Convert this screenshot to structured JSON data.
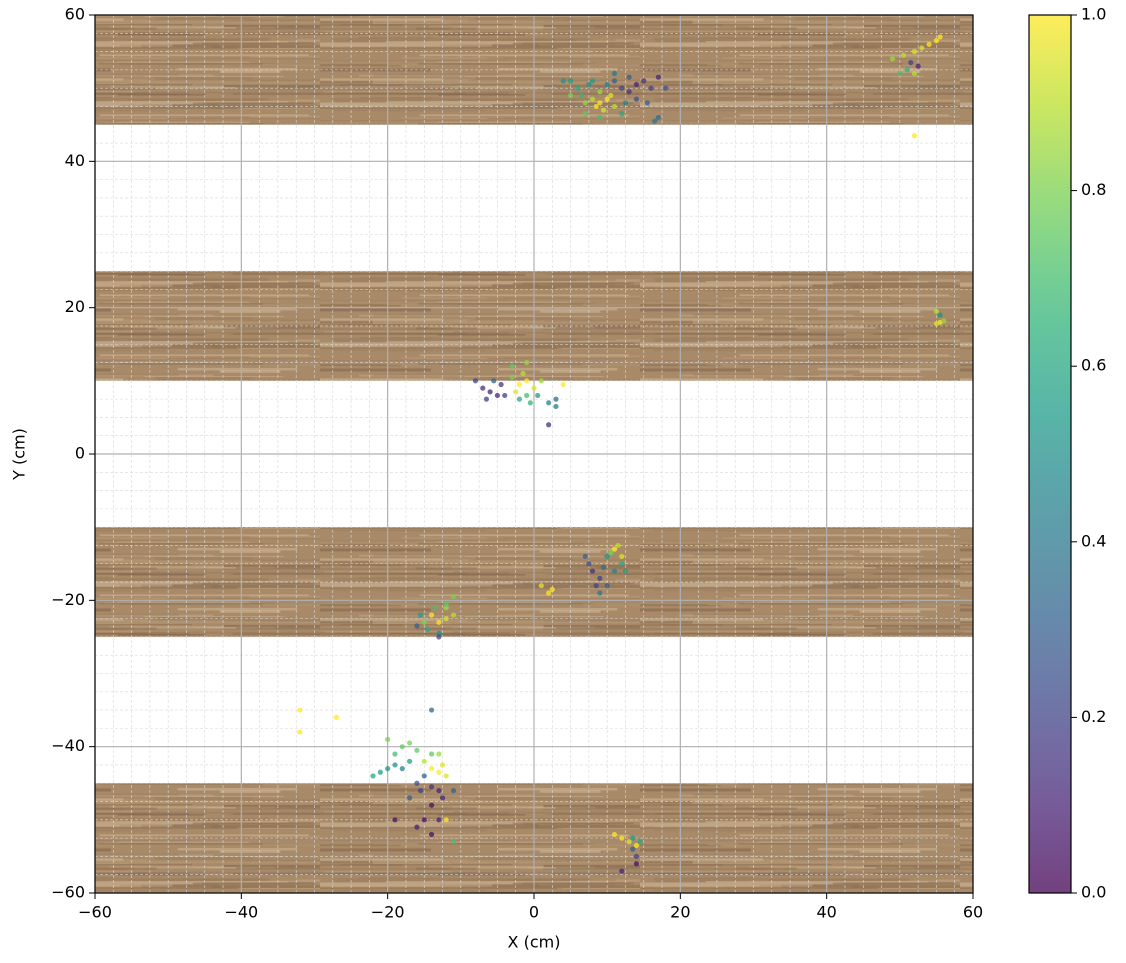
{
  "chart_data": {
    "type": "scatter",
    "xlabel": "X (cm)",
    "ylabel": "Y (cm)",
    "xlim": [
      -60,
      60
    ],
    "ylim": [
      -60,
      60
    ],
    "xticks": [
      {
        "value": -60,
        "label": "−60"
      },
      {
        "value": -40,
        "label": "−40"
      },
      {
        "value": -20,
        "label": "−20"
      },
      0,
      20,
      40,
      60
    ],
    "yticks": [
      {
        "value": -60,
        "label": "−60"
      },
      {
        "value": -40,
        "label": "−40"
      },
      {
        "value": -20,
        "label": "−20"
      },
      0,
      20,
      40,
      60
    ],
    "grid": true,
    "minor_grid": true,
    "colormap": "viridis",
    "bands": [
      [
        45,
        60
      ],
      [
        10,
        25
      ],
      [
        -25,
        -10
      ],
      [
        -60,
        -45
      ]
    ],
    "x": [
      9,
      10,
      8.5,
      9.5,
      10.5,
      8,
      11,
      9,
      7,
      6,
      5,
      7.5,
      6.5,
      8,
      4,
      10,
      11,
      12,
      13,
      14,
      15,
      16,
      17,
      14,
      13,
      15.5,
      17,
      12,
      9,
      7,
      11,
      18,
      16.5,
      5,
      12.5,
      52,
      53,
      54,
      55,
      55.5,
      49,
      50,
      51,
      52,
      52.5,
      51.5,
      50.5,
      52,
      55.5,
      55,
      56,
      55.5,
      55,
      -6,
      -7,
      -5,
      -4.5,
      -6.5,
      -5.5,
      -4,
      -2,
      -1,
      -2.5,
      -1.5,
      0,
      1,
      -3,
      -1,
      -0.5,
      -2,
      -3,
      0.5,
      2,
      3,
      3,
      2,
      -1,
      4,
      -8,
      8,
      9,
      7.5,
      8.5,
      9.5,
      10,
      11,
      11.5,
      12,
      10.5,
      12,
      11,
      10,
      9,
      7,
      12.5,
      2,
      2.5,
      1,
      -14,
      -13,
      -12,
      -15,
      -13.5,
      -12,
      -14.5,
      -13,
      -11,
      -15.5,
      -12,
      -16,
      -13,
      -11,
      -18,
      -19,
      -17,
      -16,
      -20,
      -20,
      -21,
      -19,
      -18,
      -22,
      -17,
      -15,
      -14,
      -13,
      -12.5,
      -13,
      -14,
      -12,
      -15,
      -14,
      -13,
      -15.5,
      -16,
      -12.5,
      -14,
      -13,
      -15,
      -16,
      -14,
      -17,
      -19,
      -11,
      -14,
      -11,
      -12,
      11,
      12,
      13,
      14,
      14.5,
      13.5,
      14,
      13.5,
      12,
      14,
      -32,
      -32,
      -27
    ],
    "y": [
      48,
      48.5,
      47.5,
      47,
      49,
      48.5,
      47.5,
      49.5,
      48,
      50,
      51,
      50.5,
      49,
      51,
      51,
      50.5,
      51,
      50,
      49.5,
      50.5,
      51,
      50,
      51.5,
      48.5,
      51.5,
      48,
      46,
      46.5,
      46,
      46.5,
      52,
      50,
      45.5,
      49,
      48,
      55,
      55.5,
      56,
      56.5,
      57,
      54,
      52,
      52.5,
      52,
      53,
      53.5,
      54.5,
      43.5,
      18,
      17.8,
      18.2,
      19,
      19.5,
      8.5,
      9,
      8,
      9.5,
      7.5,
      10,
      8,
      9.5,
      10,
      8.5,
      11,
      9,
      10,
      10.5,
      8,
      7,
      7.5,
      12,
      8,
      7,
      7.5,
      6.5,
      4,
      12.5,
      9.5,
      10,
      -16,
      -17,
      -15,
      -18,
      -15.5,
      -14,
      -13,
      -12.5,
      -14,
      -13.5,
      -15,
      -16,
      -18,
      -19,
      -14,
      -16,
      -19,
      -18.5,
      -18,
      -22,
      -23,
      -22.5,
      -23,
      -21,
      -21,
      -24,
      -24.5,
      -22,
      -22,
      -20.5,
      -23.5,
      -25,
      -19.5,
      -40,
      -41,
      -39.5,
      -40.5,
      -39,
      -43,
      -43.5,
      -42.5,
      -43,
      -44,
      -42,
      -42,
      -43,
      -43.5,
      -42.5,
      -41,
      -41,
      -44,
      -44,
      -45.5,
      -46,
      -46,
      -45,
      -47,
      -48,
      -50,
      -50,
      -51,
      -52,
      -47,
      -50,
      -53,
      -35,
      -46,
      -50,
      -52,
      -52.5,
      -53,
      -53.5,
      -53,
      -52.5,
      -55,
      -54,
      -57,
      -56,
      -35,
      -38,
      -36
    ],
    "c": [
      1,
      1,
      1,
      0.95,
      0.95,
      0.9,
      0.9,
      0.85,
      0.85,
      0.6,
      0.55,
      0.5,
      0.65,
      0.55,
      0.5,
      0.45,
      0.3,
      0.2,
      0.15,
      0.1,
      0.15,
      0.2,
      0.1,
      0.25,
      0.3,
      0.3,
      0.35,
      0.6,
      0.7,
      0.75,
      0.4,
      0.25,
      0.4,
      0.8,
      0.45,
      0.95,
      0.95,
      1,
      1,
      1,
      0.85,
      0.7,
      0.65,
      0.9,
      0.1,
      0.2,
      0.9,
      1,
      1,
      0.95,
      0.85,
      0.5,
      0.9,
      0.1,
      0.15,
      0.1,
      0.15,
      0.2,
      0.3,
      0.2,
      1,
      1,
      0.95,
      0.9,
      0.95,
      0.85,
      0.8,
      0.7,
      0.65,
      0.6,
      0.75,
      0.55,
      0.45,
      0.35,
      0.4,
      0.15,
      0.85,
      1,
      0.2,
      0.15,
      0.2,
      0.25,
      0.2,
      0.35,
      0.5,
      1,
      0.9,
      0.95,
      0.8,
      0.6,
      0.45,
      0.3,
      0.4,
      0.3,
      0.55,
      1,
      1,
      0.95,
      1,
      1,
      0.95,
      0.8,
      0.7,
      0.85,
      0.6,
      0.5,
      0.9,
      0.55,
      0.75,
      0.3,
      0.2,
      0.8,
      0.75,
      0.7,
      0.8,
      0.75,
      0.8,
      0.5,
      0.55,
      0.5,
      0.45,
      0.6,
      0.55,
      0.9,
      1,
      1,
      0.95,
      0.85,
      0.75,
      0.95,
      0.3,
      0.15,
      0.1,
      0.2,
      0.25,
      0.1,
      0.05,
      0.1,
      0.05,
      0.1,
      0.05,
      0.3,
      0.05,
      0.7,
      0.35,
      0.3,
      1,
      1,
      1,
      0.95,
      1,
      0.6,
      0.55,
      0.2,
      0.3,
      0.1,
      0.05,
      1,
      1,
      1
    ],
    "colorbar": {
      "lim": [
        0,
        1
      ],
      "ticks": [
        {
          "value": 0,
          "label": "0.0"
        },
        {
          "value": 0.2,
          "label": "0.2"
        },
        {
          "value": 0.4,
          "label": "0.4"
        },
        {
          "value": 0.6,
          "label": "0.6"
        },
        {
          "value": 0.8,
          "label": "0.8"
        },
        {
          "value": 1,
          "label": "1.0"
        }
      ]
    }
  }
}
